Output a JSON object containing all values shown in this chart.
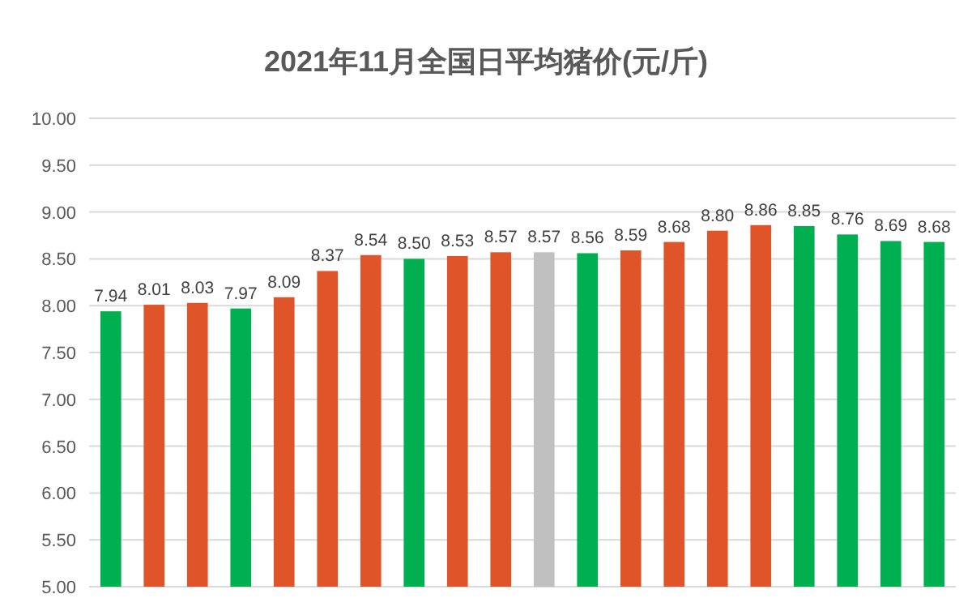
{
  "chart_data": {
    "type": "bar",
    "title": "2021年11月全国日平均猪价(元/斤)",
    "categories": [
      null,
      null,
      null,
      null,
      null,
      null,
      null,
      null,
      null,
      null,
      null,
      null,
      null,
      null,
      null,
      null,
      null,
      null,
      null,
      null
    ],
    "values": [
      7.94,
      8.01,
      8.03,
      7.97,
      8.09,
      8.37,
      8.54,
      8.5,
      8.53,
      8.57,
      8.57,
      8.56,
      8.59,
      8.68,
      8.8,
      8.86,
      8.85,
      8.76,
      8.69,
      8.68
    ],
    "colors": [
      "#00b050",
      "#e0542a",
      "#e0542a",
      "#00b050",
      "#e0542a",
      "#e0542a",
      "#e0542a",
      "#00b050",
      "#e0542a",
      "#e0542a",
      "#c0c0c0",
      "#00b050",
      "#e0542a",
      "#e0542a",
      "#e0542a",
      "#e0542a",
      "#00b050",
      "#00b050",
      "#00b050",
      "#00b050"
    ],
    "ylim": [
      5,
      10
    ],
    "yticks": [
      {
        "value": 5,
        "label": "5.00"
      },
      {
        "value": 5.5,
        "label": "5.50"
      },
      {
        "value": 6,
        "label": "6.00"
      },
      {
        "value": 6.5,
        "label": "6.50"
      },
      {
        "value": 7,
        "label": "7.00"
      },
      {
        "value": 7.5,
        "label": "7.50"
      },
      {
        "value": 8,
        "label": "8.00"
      },
      {
        "value": 8.5,
        "label": "8.50"
      },
      {
        "value": 9,
        "label": "9.00"
      },
      {
        "value": 9.5,
        "label": "9.50"
      },
      {
        "value": 10,
        "label": "10.00"
      }
    ],
    "value_labels": [
      "7.94",
      "8.01",
      "8.03",
      "7.97",
      "8.09",
      "8.37",
      "8.54",
      "8.50",
      "8.53",
      "8.57",
      "8.57",
      "8.56",
      "8.59",
      "8.68",
      "8.80",
      "8.86",
      "8.85",
      "8.76",
      "8.69",
      "8.68"
    ],
    "grid": "y"
  }
}
